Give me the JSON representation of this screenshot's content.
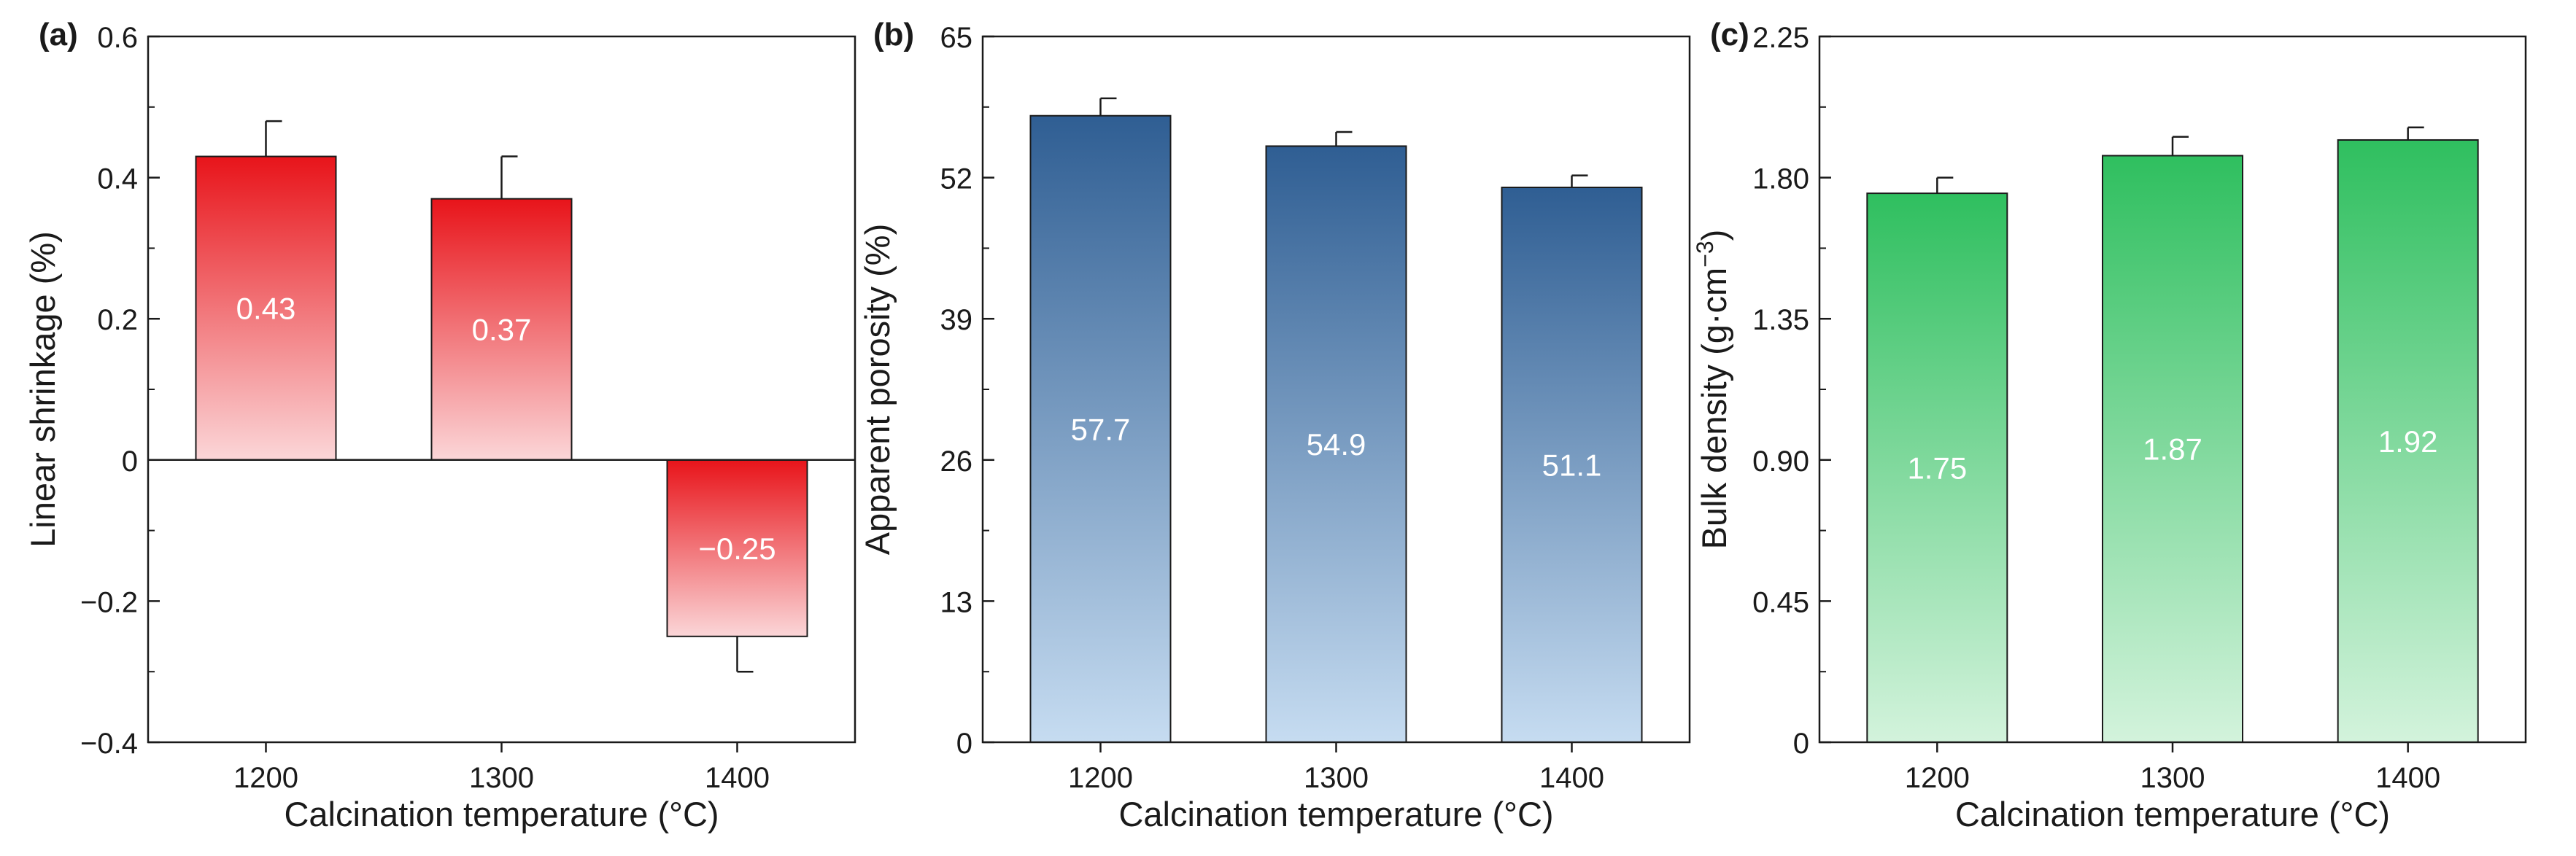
{
  "chart_data": [
    {
      "type": "bar",
      "panel_label": "(a)",
      "title": "",
      "xlabel": "Calcination temperature (°C)",
      "ylabel": "Linear shrinkage (%)",
      "ylabel_parts": [
        {
          "t": "Linear shrinkage (%)",
          "sup": false
        }
      ],
      "categories": [
        "1200",
        "1300",
        "1400"
      ],
      "values": [
        0.43,
        0.37,
        -0.25
      ],
      "value_labels": [
        "0.43",
        "0.37",
        "−0.25"
      ],
      "errors": [
        0.05,
        0.06,
        0.05
      ],
      "ylim": [
        -0.4,
        0.6
      ],
      "yticks": [
        -0.4,
        -0.2,
        0,
        0.2,
        0.4,
        0.6
      ],
      "ytick_labels": [
        "−0.4",
        "−0.2",
        "0",
        "0.2",
        "0.4",
        "0.6"
      ],
      "zero_line": true,
      "color_top": "#e8141a",
      "color_bottom": "#fbd6d8",
      "label_color": "#ffffff"
    },
    {
      "type": "bar",
      "panel_label": "(b)",
      "title": "",
      "xlabel": "Calcination temperature (°C)",
      "ylabel": "Apparent porosity (%)",
      "ylabel_parts": [
        {
          "t": "Apparent porosity (%)",
          "sup": false
        }
      ],
      "categories": [
        "1200",
        "1300",
        "1400"
      ],
      "values": [
        57.7,
        54.9,
        51.1
      ],
      "value_labels": [
        "57.7",
        "54.9",
        "51.1"
      ],
      "errors": [
        1.6,
        1.3,
        1.1
      ],
      "ylim": [
        0,
        65
      ],
      "yticks": [
        0,
        13,
        26,
        39,
        52,
        65
      ],
      "ytick_labels": [
        "0",
        "13",
        "26",
        "39",
        "52",
        "65"
      ],
      "zero_line": false,
      "color_top": "#2f5e93",
      "color_bottom": "#c6dcf1",
      "label_color": "#ffffff"
    },
    {
      "type": "bar",
      "panel_label": "(c)",
      "title": "",
      "xlabel": "Calcination temperature (°C)",
      "ylabel": "Bulk density (g·cm−3)",
      "ylabel_parts": [
        {
          "t": "Bulk density (g·cm",
          "sup": false
        },
        {
          "t": "−3",
          "sup": true
        },
        {
          "t": ")",
          "sup": false
        }
      ],
      "categories": [
        "1200",
        "1300",
        "1400"
      ],
      "values": [
        1.75,
        1.87,
        1.92
      ],
      "value_labels": [
        "1.75",
        "1.87",
        "1.92"
      ],
      "errors": [
        0.05,
        0.06,
        0.04
      ],
      "ylim": [
        0,
        2.25
      ],
      "yticks": [
        0,
        0.45,
        0.9,
        1.35,
        1.8,
        2.25
      ],
      "ytick_labels": [
        "0",
        "0.45",
        "0.90",
        "1.35",
        "1.80",
        "2.25"
      ],
      "zero_line": false,
      "color_top": "#2fbf5f",
      "color_bottom": "#d3f3dc",
      "label_color": "#ffffff"
    }
  ]
}
